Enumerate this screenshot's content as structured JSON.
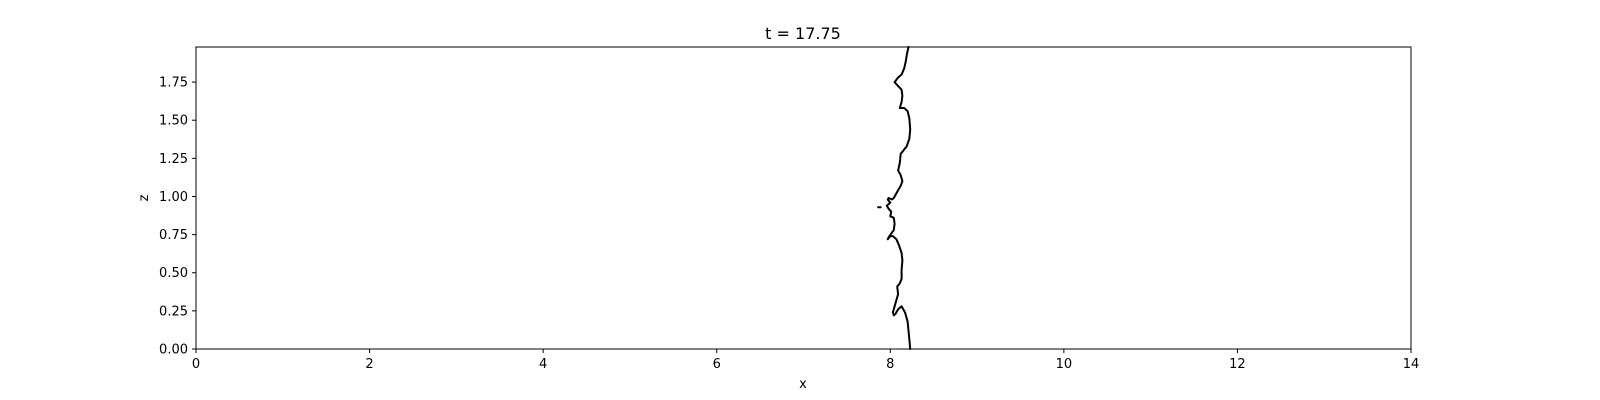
{
  "chart_data": {
    "type": "line",
    "title": "t = 17.75",
    "xlabel": "x",
    "ylabel": "z",
    "xlim": [
      0,
      14
    ],
    "ylim": [
      0,
      1.98
    ],
    "xticks": [
      0,
      2,
      4,
      6,
      8,
      10,
      12,
      14
    ],
    "xtick_labels": [
      "0",
      "2",
      "4",
      "6",
      "8",
      "10",
      "12",
      "14"
    ],
    "yticks": [
      0,
      0.25,
      0.5,
      0.75,
      1.0,
      1.25,
      1.5,
      1.75
    ],
    "ytick_labels": [
      "0.00",
      "0.25",
      "0.50",
      "0.75",
      "1.00",
      "1.25",
      "1.50",
      "1.75"
    ],
    "grid": false,
    "legend": "none",
    "line_color": "#000000",
    "series": [
      {
        "points": [
          [
            8.23,
            0.0
          ],
          [
            8.22,
            0.06
          ],
          [
            8.21,
            0.12
          ],
          [
            8.2,
            0.18
          ],
          [
            8.17,
            0.24
          ],
          [
            8.13,
            0.28
          ],
          [
            8.09,
            0.26
          ],
          [
            8.06,
            0.23
          ],
          [
            8.04,
            0.22
          ],
          [
            8.03,
            0.24
          ],
          [
            8.06,
            0.3
          ],
          [
            8.09,
            0.36
          ],
          [
            8.08,
            0.41
          ],
          [
            8.11,
            0.43
          ],
          [
            8.13,
            0.46
          ],
          [
            8.13,
            0.52
          ],
          [
            8.14,
            0.58
          ],
          [
            8.13,
            0.63
          ],
          [
            8.1,
            0.68
          ],
          [
            8.07,
            0.72
          ],
          [
            8.03,
            0.74
          ],
          [
            8.0,
            0.74
          ],
          [
            7.97,
            0.72
          ],
          [
            7.99,
            0.74
          ],
          [
            8.04,
            0.78
          ],
          [
            8.05,
            0.82
          ],
          [
            8.04,
            0.86
          ],
          [
            8.0,
            0.87
          ],
          [
            8.01,
            0.9
          ],
          [
            7.98,
            0.92
          ],
          [
            7.96,
            0.94
          ],
          [
            7.98,
            0.95
          ],
          [
            8.0,
            0.96
          ],
          [
            7.97,
            0.98
          ],
          [
            7.98,
            0.99
          ],
          [
            8.02,
            0.98
          ],
          [
            8.04,
            0.99
          ],
          [
            8.08,
            1.03
          ],
          [
            8.12,
            1.07
          ],
          [
            8.14,
            1.1
          ],
          [
            8.12,
            1.14
          ],
          [
            8.09,
            1.17
          ],
          [
            8.11,
            1.22
          ],
          [
            8.12,
            1.28
          ],
          [
            8.15,
            1.3
          ],
          [
            8.19,
            1.33
          ],
          [
            8.22,
            1.38
          ],
          [
            8.23,
            1.44
          ],
          [
            8.22,
            1.51
          ],
          [
            8.2,
            1.56
          ],
          [
            8.16,
            1.58
          ],
          [
            8.11,
            1.58
          ],
          [
            8.13,
            1.62
          ],
          [
            8.14,
            1.66
          ],
          [
            8.13,
            1.7
          ],
          [
            8.08,
            1.73
          ],
          [
            8.05,
            1.75
          ],
          [
            8.09,
            1.78
          ],
          [
            8.13,
            1.8
          ],
          [
            8.16,
            1.84
          ],
          [
            8.18,
            1.89
          ],
          [
            8.19,
            1.93
          ],
          [
            8.21,
            1.98
          ]
        ]
      },
      {
        "points": [
          [
            7.86,
            0.93
          ],
          [
            7.89,
            0.93
          ]
        ]
      }
    ]
  }
}
